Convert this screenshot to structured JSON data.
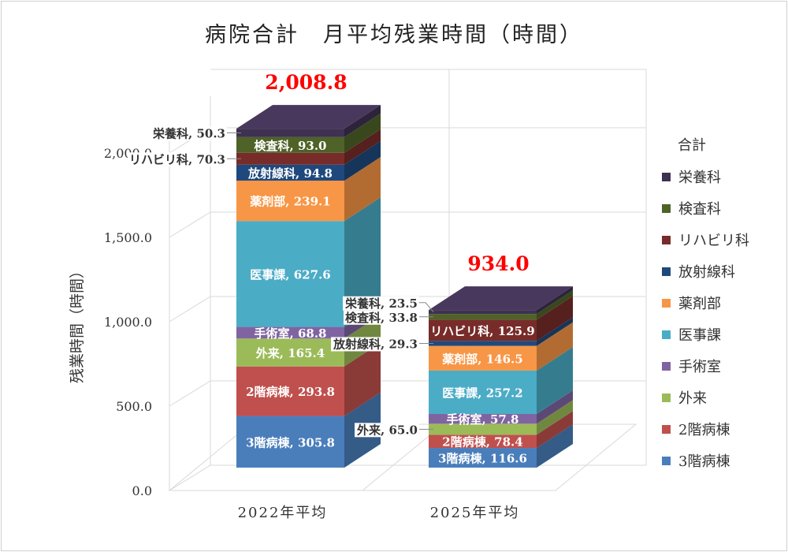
{
  "chart_data": {
    "type": "bar",
    "stacked": true,
    "three_d": true,
    "title": "病院合計　月平均残業時間（時間）",
    "ylabel": "残業時間（時間）",
    "xlabel": "",
    "ylim": [
      0,
      2000
    ],
    "yticks": [
      "0.0",
      "500.0",
      "1,000.0",
      "1,500.0",
      "2,000.0"
    ],
    "categories": [
      "2022年平均",
      "2025年平均"
    ],
    "totals": [
      "2,008.8",
      "934.0"
    ],
    "legend_title": "合計",
    "legend_position": "right",
    "grid": true,
    "series": [
      {
        "name": "3階病棟",
        "values": [
          305.8,
          116.6
        ],
        "labels": [
          "3階病棟, 305.8",
          "3階病棟, 116.6"
        ],
        "color": "#4a7ebb"
      },
      {
        "name": "2階病棟",
        "values": [
          293.8,
          78.4
        ],
        "labels": [
          "2階病棟, 293.8",
          "2階病棟, 78.4"
        ],
        "color": "#c0504d"
      },
      {
        "name": "外来",
        "values": [
          165.4,
          65.0
        ],
        "labels": [
          "外来, 165.4",
          "外来, 65.0"
        ],
        "color": "#9bbb59"
      },
      {
        "name": "手術室",
        "values": [
          68.8,
          57.8
        ],
        "labels": [
          "手術室, 68.8",
          "手術室, 57.8"
        ],
        "color": "#8064a2"
      },
      {
        "name": "医事課",
        "values": [
          627.6,
          257.2
        ],
        "labels": [
          "医事課, 627.6",
          "医事課, 257.2"
        ],
        "color": "#4bacc6"
      },
      {
        "name": "薬剤部",
        "values": [
          239.1,
          146.5
        ],
        "labels": [
          "薬剤部, 239.1",
          "薬剤部, 146.5"
        ],
        "color": "#f79646"
      },
      {
        "name": "放射線科",
        "values": [
          94.8,
          29.3
        ],
        "labels": [
          "放射線科, 94.8",
          "放射線科, 29.3"
        ],
        "color": "#1f497d"
      },
      {
        "name": "リハビリ科",
        "values": [
          70.3,
          125.9
        ],
        "labels": [
          "リハビリ科, 70.3",
          "リハビリ科, 125.9"
        ],
        "color": "#772c2a"
      },
      {
        "name": "検査科",
        "values": [
          93.0,
          33.8
        ],
        "labels": [
          "検査科, 93.0",
          "検査科, 33.8"
        ],
        "color": "#4f6228"
      },
      {
        "name": "栄養科",
        "values": [
          50.3,
          23.5
        ],
        "labels": [
          "栄養科, 50.3",
          "栄養科, 23.5"
        ],
        "color": "#3f3151"
      }
    ],
    "total_label_color": "#ff0000"
  }
}
